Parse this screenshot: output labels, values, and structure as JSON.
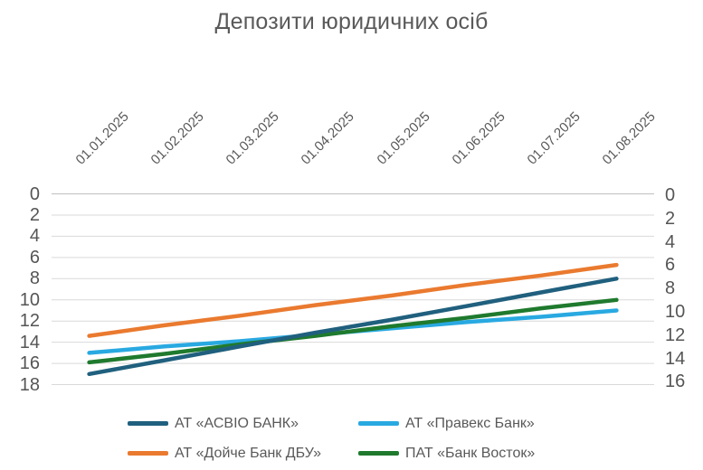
{
  "title": "Депозити юридичних осіб",
  "chart_data": {
    "type": "line",
    "title": "Депозити юридичних осіб",
    "categories": [
      "01.01.2025",
      "01.02.2025",
      "01.03.2025",
      "01.04.2025",
      "01.05.2025",
      "01.06.2025",
      "01.07.2025",
      "01.08.2025"
    ],
    "series": [
      {
        "name": "АТ «АСВІО БАНК»",
        "color": "#20607e",
        "axis": "left",
        "values": [
          17.0,
          15.7,
          14.4,
          13.1,
          11.9,
          10.6,
          9.3,
          8.0
        ]
      },
      {
        "name": "АТ «Правекс Банк»",
        "color": "#29a9e1",
        "axis": "left",
        "values": [
          15.0,
          14.4,
          13.9,
          13.3,
          12.7,
          12.1,
          11.6,
          11.0
        ]
      },
      {
        "name": "АТ «Дойче Банк ДБУ»",
        "color": "#ea7a2f",
        "axis": "left",
        "values": [
          13.4,
          12.4,
          11.5,
          10.5,
          9.6,
          8.6,
          7.7,
          6.7
        ]
      },
      {
        "name": "ПАТ «Банк Восток»",
        "color": "#1f7a2e",
        "axis": "left",
        "values": [
          15.9,
          15.1,
          14.2,
          13.4,
          12.5,
          11.7,
          10.8,
          10.0
        ]
      }
    ],
    "left_axis": {
      "ticks": [
        0,
        2,
        4,
        6,
        8,
        10,
        12,
        14,
        16,
        18
      ],
      "min": 0,
      "max": 18,
      "inverted": true
    },
    "right_axis": {
      "ticks": [
        0,
        2,
        4,
        6,
        8,
        10,
        12,
        14,
        16
      ],
      "min": 0,
      "max": 16,
      "inverted": true
    },
    "x_axis_position": "top",
    "x_label_rotation_deg": 45,
    "grid": true,
    "legend_position": "bottom",
    "colors": {
      "grid": "#d9d9d9",
      "axis_line": "#bfbfbf",
      "text": "#595959",
      "tick_text": "#555555"
    }
  },
  "legend": {
    "items": [
      {
        "label": "АТ «АСВІО БАНК»"
      },
      {
        "label": "АТ «Правекс Банк»"
      },
      {
        "label": "АТ «Дойче Банк ДБУ»"
      },
      {
        "label": "ПАТ «Банк Восток»"
      }
    ]
  }
}
